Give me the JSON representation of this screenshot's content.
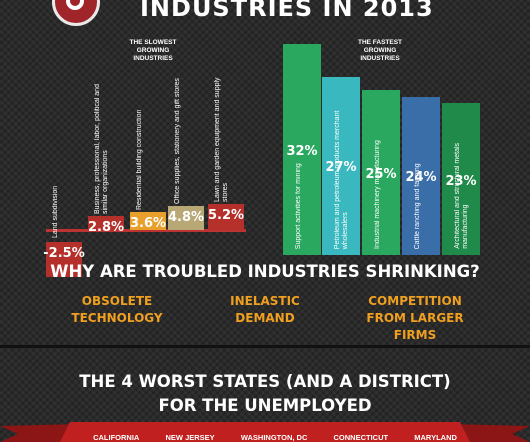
{
  "header": {
    "title": "INDUSTRIES IN 2013"
  },
  "slowest_label": "THE SLOWEST\nGROWING\nINDUSTRIES",
  "fastest_label": "THE FASTEST\nGROWING\nINDUSTRIES",
  "colors": {
    "green": "#2aa860",
    "teal": "#3ab8c0",
    "dark_green": "#1f8a4a",
    "blue": "#3a6ea8",
    "red": "#b5302a",
    "beige": "#b8a876",
    "orange": "#e8a02a",
    "accent": "#f0a020"
  },
  "chart_data": [
    {
      "type": "bar",
      "title": "",
      "categories": [
        "Land subdivision",
        "Business, professional, labor, political and similar organizations",
        "Residential building construction",
        "Office supplies, stationery and gift stores",
        "Lawn and garden equipment and supply stores"
      ],
      "values": [
        -2.5,
        2.8,
        3.6,
        4.8,
        5.2
      ],
      "value_labels": [
        "-2.5%",
        "2.8%",
        "3.6%",
        "4.8%",
        "5.2%"
      ]
    },
    {
      "type": "bar",
      "title": "",
      "categories": [
        "Support activities for mining",
        "Petroleum and petroleum products merchant wholesalers",
        "Industrial machinery manufacturing",
        "Cattle ranching and farming",
        "Architectural and structural metals manufacturing"
      ],
      "values": [
        32,
        27,
        25,
        24,
        23
      ],
      "value_labels": [
        "32%",
        "27%",
        "25%",
        "24%",
        "23%"
      ]
    }
  ],
  "question": "WHY ARE TROUBLED INDUSTRIES SHRINKING?",
  "reasons": [
    "OBSOLETE\nTECHNOLOGY",
    "INELASTIC\nDEMAND",
    "COMPETITION\nFROM LARGER\nFIRMS"
  ],
  "worst_title": "THE 4 WORST STATES (AND A DISTRICT)\nFOR THE UNEMPLOYED",
  "states": [
    "CALIFORNIA",
    "NEW JERSEY",
    "WASHINGTON, DC",
    "CONNECTICUT",
    "MARYLAND"
  ]
}
